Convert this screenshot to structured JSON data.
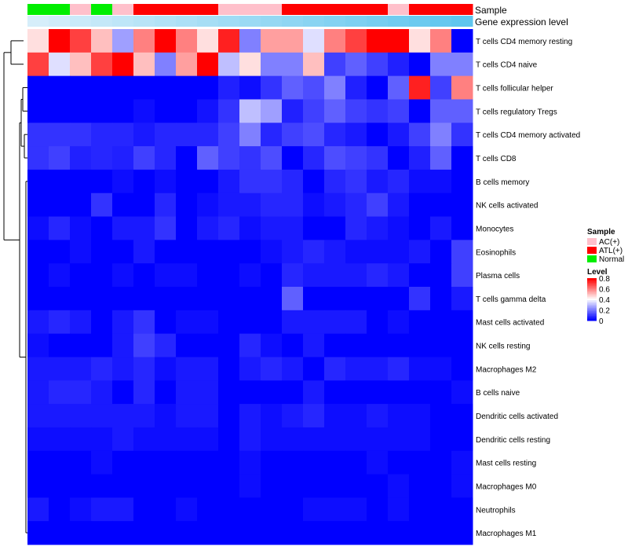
{
  "chart_data": {
    "type": "heatmap",
    "title": "",
    "annotation_tracks": [
      {
        "name": "Sample",
        "label": "Sample"
      },
      {
        "name": "Gene expression level",
        "label": "Gene expression level"
      }
    ],
    "sample_groups": [
      "Normal",
      "Normal",
      "AC(+)",
      "Normal",
      "AC(+)",
      "ATL(+)",
      "ATL(+)",
      "ATL(+)",
      "ATL(+)",
      "AC(+)",
      "AC(+)",
      "AC(+)",
      "ATL(+)",
      "ATL(+)",
      "ATL(+)",
      "ATL(+)",
      "ATL(+)",
      "AC(+)",
      "ATL(+)",
      "ATL(+)",
      "ATL(+)"
    ],
    "expression_level": [
      0.06,
      0.1,
      0.14,
      0.18,
      0.22,
      0.26,
      0.3,
      0.34,
      0.38,
      0.42,
      0.46,
      0.5,
      0.54,
      0.58,
      0.62,
      0.66,
      0.7,
      0.74,
      0.78,
      0.82,
      0.86
    ],
    "rows": [
      {
        "label": "T cells CD4 memory resting",
        "values": [
          0.45,
          0.8,
          0.7,
          0.5,
          0.25,
          0.6,
          0.8,
          0.6,
          0.45,
          0.75,
          0.2,
          0.55,
          0.55,
          0.35,
          0.6,
          0.7,
          0.8,
          0.8,
          0.45,
          0.6,
          0.0
        ]
      },
      {
        "label": "T cells CD4 naive",
        "values": [
          0.7,
          0.35,
          0.5,
          0.7,
          0.8,
          0.5,
          0.2,
          0.55,
          0.8,
          0.3,
          0.45,
          0.2,
          0.2,
          0.5,
          0.1,
          0.15,
          0.1,
          0.05,
          0.0,
          0.2,
          0.2
        ]
      },
      {
        "label": "T cells follicular helper",
        "values": [
          0.0,
          0.0,
          0.0,
          0.0,
          0.0,
          0.0,
          0.0,
          0.0,
          0.0,
          0.05,
          0.02,
          0.08,
          0.15,
          0.12,
          0.2,
          0.05,
          0.0,
          0.15,
          0.75,
          0.1,
          0.6
        ]
      },
      {
        "label": "T cells regulatory  Tregs",
        "values": [
          0.0,
          0.0,
          0.0,
          0.0,
          0.0,
          0.02,
          0.0,
          0.0,
          0.03,
          0.08,
          0.3,
          0.25,
          0.05,
          0.1,
          0.15,
          0.1,
          0.08,
          0.1,
          0.0,
          0.15,
          0.15
        ]
      },
      {
        "label": "T cells CD4 memory activated",
        "values": [
          0.08,
          0.08,
          0.08,
          0.06,
          0.06,
          0.04,
          0.06,
          0.06,
          0.06,
          0.1,
          0.2,
          0.06,
          0.1,
          0.12,
          0.06,
          0.04,
          0.0,
          0.04,
          0.1,
          0.2,
          0.08
        ]
      },
      {
        "label": "T cells CD8",
        "values": [
          0.08,
          0.1,
          0.05,
          0.06,
          0.05,
          0.1,
          0.06,
          0.0,
          0.15,
          0.1,
          0.08,
          0.12,
          0.0,
          0.06,
          0.12,
          0.1,
          0.08,
          0.0,
          0.05,
          0.15,
          0.0
        ]
      },
      {
        "label": "B cells memory",
        "values": [
          0.0,
          0.0,
          0.0,
          0.0,
          0.02,
          0.0,
          0.02,
          0.0,
          0.0,
          0.04,
          0.08,
          0.08,
          0.06,
          0.0,
          0.06,
          0.08,
          0.04,
          0.06,
          0.02,
          0.02,
          0.0
        ]
      },
      {
        "label": "NK cells activated",
        "values": [
          0.0,
          0.0,
          0.0,
          0.08,
          0.0,
          0.0,
          0.06,
          0.0,
          0.02,
          0.04,
          0.04,
          0.06,
          0.06,
          0.02,
          0.04,
          0.06,
          0.1,
          0.04,
          0.0,
          0.0,
          0.0
        ]
      },
      {
        "label": "Monocytes",
        "values": [
          0.02,
          0.06,
          0.02,
          0.0,
          0.04,
          0.04,
          0.08,
          0.0,
          0.04,
          0.06,
          0.02,
          0.04,
          0.04,
          0.0,
          0.0,
          0.06,
          0.04,
          0.02,
          0.0,
          0.04,
          0.0
        ]
      },
      {
        "label": "Eosinophils",
        "values": [
          0.0,
          0.0,
          0.02,
          0.0,
          0.0,
          0.04,
          0.0,
          0.0,
          0.0,
          0.0,
          0.0,
          0.02,
          0.04,
          0.06,
          0.04,
          0.02,
          0.02,
          0.02,
          0.04,
          0.0,
          0.1
        ]
      },
      {
        "label": "Plasma cells",
        "values": [
          0.0,
          0.02,
          0.0,
          0.0,
          0.02,
          0.0,
          0.02,
          0.02,
          0.0,
          0.0,
          0.02,
          0.0,
          0.06,
          0.04,
          0.04,
          0.04,
          0.06,
          0.04,
          0.0,
          0.0,
          0.1
        ]
      },
      {
        "label": "T cells gamma delta",
        "values": [
          0.0,
          0.0,
          0.0,
          0.0,
          0.0,
          0.0,
          0.0,
          0.0,
          0.0,
          0.0,
          0.0,
          0.0,
          0.15,
          0.0,
          0.0,
          0.0,
          0.0,
          0.0,
          0.08,
          0.0,
          0.04
        ]
      },
      {
        "label": "Mast cells activated",
        "values": [
          0.04,
          0.06,
          0.04,
          0.0,
          0.04,
          0.08,
          0.0,
          0.02,
          0.02,
          0.0,
          0.0,
          0.0,
          0.04,
          0.04,
          0.04,
          0.04,
          0.0,
          0.02,
          0.0,
          0.0,
          0.0
        ]
      },
      {
        "label": "NK cells resting",
        "values": [
          0.02,
          0.0,
          0.0,
          0.0,
          0.04,
          0.1,
          0.06,
          0.0,
          0.0,
          0.0,
          0.06,
          0.02,
          0.0,
          0.04,
          0.0,
          0.0,
          0.0,
          0.0,
          0.0,
          0.0,
          0.0
        ]
      },
      {
        "label": "Macrophages M2",
        "values": [
          0.04,
          0.04,
          0.04,
          0.06,
          0.04,
          0.06,
          0.02,
          0.04,
          0.04,
          0.0,
          0.04,
          0.06,
          0.04,
          0.0,
          0.06,
          0.04,
          0.04,
          0.06,
          0.02,
          0.02,
          0.0
        ]
      },
      {
        "label": "B cells naive",
        "values": [
          0.04,
          0.06,
          0.06,
          0.04,
          0.0,
          0.06,
          0.0,
          0.04,
          0.04,
          0.0,
          0.0,
          0.0,
          0.0,
          0.04,
          0.0,
          0.0,
          0.0,
          0.0,
          0.0,
          0.0,
          0.02
        ]
      },
      {
        "label": "Dendritic cells activated",
        "values": [
          0.04,
          0.04,
          0.04,
          0.04,
          0.04,
          0.04,
          0.02,
          0.04,
          0.04,
          0.0,
          0.04,
          0.02,
          0.04,
          0.06,
          0.02,
          0.02,
          0.04,
          0.02,
          0.02,
          0.0,
          0.0
        ]
      },
      {
        "label": "Dendritic cells resting",
        "values": [
          0.02,
          0.02,
          0.02,
          0.02,
          0.04,
          0.02,
          0.02,
          0.02,
          0.02,
          0.0,
          0.04,
          0.02,
          0.02,
          0.02,
          0.02,
          0.02,
          0.02,
          0.02,
          0.02,
          0.0,
          0.0
        ]
      },
      {
        "label": "Mast cells resting",
        "values": [
          0.0,
          0.0,
          0.0,
          0.02,
          0.0,
          0.0,
          0.0,
          0.0,
          0.0,
          0.0,
          0.02,
          0.0,
          0.0,
          0.0,
          0.0,
          0.0,
          0.02,
          0.0,
          0.0,
          0.0,
          0.02
        ]
      },
      {
        "label": "Macrophages M0",
        "values": [
          0.0,
          0.0,
          0.0,
          0.0,
          0.0,
          0.0,
          0.0,
          0.0,
          0.0,
          0.0,
          0.02,
          0.0,
          0.0,
          0.0,
          0.0,
          0.0,
          0.0,
          0.02,
          0.0,
          0.0,
          0.02
        ]
      },
      {
        "label": "Neutrophils",
        "values": [
          0.04,
          0.0,
          0.02,
          0.04,
          0.04,
          0.0,
          0.0,
          0.02,
          0.0,
          0.0,
          0.0,
          0.0,
          0.0,
          0.02,
          0.02,
          0.02,
          0.0,
          0.02,
          0.0,
          0.0,
          0.0
        ]
      },
      {
        "label": "Macrophages M1",
        "values": [
          0.0,
          0.0,
          0.0,
          0.0,
          0.0,
          0.0,
          0.0,
          0.0,
          0.0,
          0.0,
          0.0,
          0.0,
          0.0,
          0.0,
          0.0,
          0.0,
          0.0,
          0.0,
          0.0,
          0.0,
          0.0
        ]
      }
    ],
    "legend_sample": {
      "title": "Sample",
      "items": [
        {
          "label": "AC(+)",
          "color": "#ffc0cb"
        },
        {
          "label": "ATL(+)",
          "color": "#ff0000"
        },
        {
          "label": "Normal",
          "color": "#00ee00"
        }
      ]
    },
    "legend_level": {
      "title": "Level",
      "ticks": [
        "0.8",
        "0.6",
        "0.4",
        "0.2",
        "0"
      ],
      "range": [
        0,
        0.8
      ]
    },
    "color_scale": {
      "low": "#0000ff",
      "mid": "#ffffff",
      "high": "#ff0000",
      "domain": [
        0,
        0.4,
        0.8
      ]
    },
    "expression_colors": {
      "low": "#d6eefa",
      "high": "#5fc6ee"
    }
  }
}
